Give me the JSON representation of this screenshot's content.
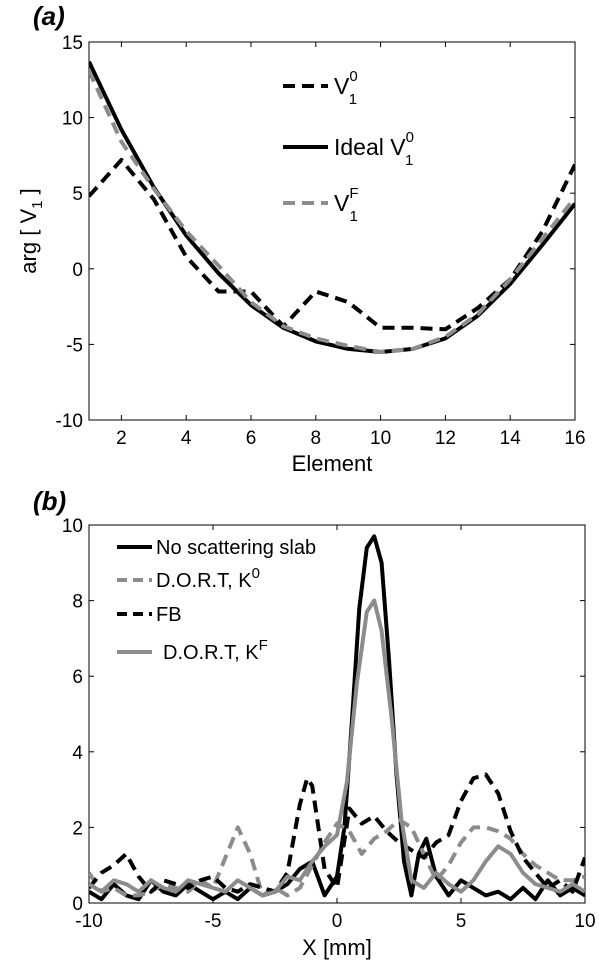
{
  "chart_data": [
    {
      "panel_label": "(a)",
      "type": "line",
      "xlabel": "Element",
      "ylabel_main": "arg [ V",
      "ylabel_sub": "1",
      "ylabel_close": " ]",
      "xlim": [
        1,
        16
      ],
      "ylim": [
        -10,
        15
      ],
      "xticks": [
        "2",
        "4",
        "6",
        "8",
        "10",
        "12",
        "14",
        "16"
      ],
      "yticks": [
        "15",
        "10",
        "5",
        "0",
        "-5",
        "-10"
      ],
      "legend_position": "top-center",
      "legend": [
        {
          "main": "V",
          "sup": "0",
          "sub": "1"
        },
        {
          "main": "Ideal V",
          "sup": "0",
          "sub": "1"
        },
        {
          "main": "V",
          "sup": "F",
          "sub": "1"
        }
      ],
      "series": [
        {
          "color": "#000000",
          "dash": "dashed",
          "x": [
            1,
            2,
            3,
            4,
            5,
            6,
            7,
            8,
            9,
            10,
            11,
            12,
            13,
            14,
            15,
            16
          ],
          "values": [
            4.8,
            7.2,
            4.6,
            0.8,
            -1.5,
            -1.5,
            -3.8,
            -1.5,
            -2.2,
            -3.9,
            -3.9,
            -4.0,
            -2.6,
            -0.7,
            2.5,
            6.9
          ]
        },
        {
          "color": "#000000",
          "dash": "solid",
          "x": [
            1,
            2,
            3,
            4,
            5,
            6,
            7,
            8,
            9,
            10,
            11,
            12,
            13,
            14,
            15,
            16
          ],
          "values": [
            13.7,
            9.2,
            5.4,
            2.2,
            -0.3,
            -2.4,
            -3.9,
            -4.8,
            -5.3,
            -5.5,
            -5.3,
            -4.6,
            -3.1,
            -1.0,
            1.6,
            4.3
          ]
        },
        {
          "color": "#8c8c8c",
          "dash": "dashed",
          "x": [
            1,
            2,
            3,
            4,
            5,
            6,
            7,
            8,
            9,
            10,
            11,
            12,
            13,
            14,
            15,
            16
          ],
          "values": [
            13.1,
            8.4,
            5.3,
            2.5,
            0.2,
            -2.2,
            -3.8,
            -4.6,
            -5.1,
            -5.5,
            -5.3,
            -4.5,
            -3.0,
            -0.7,
            2.0,
            4.7
          ]
        }
      ]
    },
    {
      "panel_label": "(b)",
      "type": "line",
      "xlabel": "X [mm]",
      "xlim": [
        -10,
        10
      ],
      "ylim": [
        0,
        10
      ],
      "xticks": [
        "-10",
        "-5",
        "0",
        "5",
        "10"
      ],
      "yticks": [
        "10",
        "8",
        "6",
        "4",
        "2",
        "0"
      ],
      "legend_position": "top-left",
      "legend": [
        {
          "main": "No scattering slab",
          "sup": ""
        },
        {
          "main": "D.O.R.T, K",
          "sup": "0"
        },
        {
          "main": "FB",
          "sup": ""
        },
        {
          "main": "D.O.R.T, K",
          "sup": "F"
        }
      ],
      "series": [
        {
          "color": "#000000",
          "dash": "solid",
          "x": [
            -10,
            -9.5,
            -9,
            -8.5,
            -8,
            -7.5,
            -7,
            -6.5,
            -6,
            -5.5,
            -5,
            -4.5,
            -4,
            -3.5,
            -3,
            -2.5,
            -2,
            -1.5,
            -1,
            -0.5,
            0,
            0.3,
            0.6,
            0.9,
            1.2,
            1.5,
            1.8,
            2.1,
            2.4,
            2.7,
            3.0,
            3.3,
            3.6,
            4,
            4.5,
            5,
            5.5,
            6,
            6.5,
            7,
            7.5,
            8,
            8.5,
            9,
            9.5,
            10
          ],
          "values": [
            0.3,
            0.1,
            0.5,
            0.2,
            0.1,
            0.6,
            0.3,
            0.2,
            0.5,
            0.3,
            0.1,
            0.3,
            0.1,
            0.4,
            0.2,
            0.3,
            0.5,
            0.9,
            1.1,
            0.2,
            0.7,
            2.0,
            4.8,
            7.8,
            9.4,
            9.7,
            9.0,
            6.4,
            3.4,
            1.1,
            0.2,
            1.3,
            1.7,
            0.7,
            0.2,
            0.6,
            0.4,
            0.2,
            0.3,
            0.1,
            0.4,
            0.1,
            0.6,
            0.2,
            0.4,
            0.2
          ]
        },
        {
          "color": "#8c8c8c",
          "dash": "dashed",
          "x": [
            -10,
            -9.5,
            -9,
            -8.5,
            -8,
            -7.5,
            -7,
            -6.5,
            -6,
            -5.5,
            -5,
            -4.5,
            -4,
            -3.5,
            -3,
            -2.5,
            -2,
            -1.5,
            -1,
            -0.5,
            0,
            0.5,
            1,
            1.5,
            2,
            2.5,
            3,
            3.5,
            4,
            4.5,
            5,
            5.5,
            6,
            6.5,
            7,
            7.5,
            8,
            8.5,
            9,
            9.5,
            10
          ],
          "values": [
            0.8,
            0.3,
            0.4,
            0.2,
            0.2,
            0.3,
            0.5,
            0.4,
            0.3,
            0.6,
            0.4,
            1.2,
            2.0,
            1.3,
            0.2,
            0.4,
            0.2,
            0.4,
            1.0,
            1.6,
            2.1,
            1.9,
            1.3,
            1.7,
            1.9,
            2.2,
            2.0,
            1.3,
            0.6,
            1.0,
            1.6,
            2.0,
            2.0,
            1.9,
            1.7,
            1.3,
            1.0,
            0.8,
            0.6,
            0.6,
            0.7
          ]
        },
        {
          "color": "#000000",
          "dash": "dashed",
          "x": [
            -10,
            -9.5,
            -9,
            -8.5,
            -8,
            -7.5,
            -7,
            -6.5,
            -6,
            -5.5,
            -5,
            -4.5,
            -4,
            -3.5,
            -3,
            -2.5,
            -2,
            -1.5,
            -1.2,
            -1,
            -0.5,
            0,
            0.5,
            1,
            1.5,
            2,
            2.5,
            3,
            3.5,
            4,
            4.5,
            5,
            5.5,
            6,
            6.5,
            7,
            7.5,
            8,
            8.5,
            9,
            9.5,
            10
          ],
          "values": [
            0.4,
            0.8,
            1.0,
            1.3,
            0.7,
            0.3,
            0.6,
            0.5,
            0.4,
            0.6,
            0.7,
            0.4,
            0.3,
            0.5,
            0.4,
            0.3,
            0.8,
            2.6,
            3.3,
            3.1,
            0.9,
            0.4,
            2.5,
            2.1,
            2.3,
            1.9,
            1.6,
            1.4,
            1.2,
            1.6,
            1.8,
            2.7,
            3.3,
            3.4,
            2.9,
            1.9,
            1.2,
            0.8,
            0.4,
            0.6,
            0.3,
            1.2
          ]
        },
        {
          "color": "#8c8c8c",
          "dash": "solid",
          "x": [
            -10,
            -9.5,
            -9,
            -8.5,
            -8,
            -7.5,
            -7,
            -6.5,
            -6,
            -5.5,
            -5,
            -4.5,
            -4,
            -3.5,
            -3,
            -2.5,
            -2,
            -1.5,
            -1,
            -0.5,
            0,
            0.4,
            0.8,
            1.2,
            1.5,
            1.8,
            2.2,
            2.6,
            3.0,
            3.5,
            4,
            4.5,
            5,
            5.5,
            6,
            6.5,
            7,
            7.5,
            8,
            8.5,
            9,
            9.5,
            10
          ],
          "values": [
            0.5,
            0.3,
            0.6,
            0.5,
            0.3,
            0.6,
            0.4,
            0.3,
            0.6,
            0.5,
            0.4,
            0.3,
            0.6,
            0.4,
            0.2,
            0.3,
            0.7,
            0.6,
            1.1,
            1.5,
            1.8,
            3.2,
            5.8,
            7.7,
            8.0,
            7.2,
            4.9,
            2.2,
            0.6,
            0.4,
            0.8,
            0.5,
            0.3,
            0.6,
            1.1,
            1.5,
            1.3,
            0.8,
            0.5,
            0.4,
            0.3,
            0.5,
            0.3
          ]
        }
      ]
    }
  ]
}
